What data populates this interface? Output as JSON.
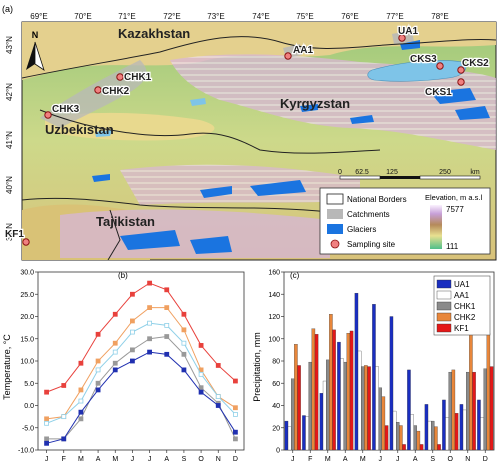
{
  "map": {
    "panel_label": "(a)",
    "top_axis": [
      "69°E",
      "70°E",
      "71°E",
      "72°E",
      "73°E",
      "74°E",
      "75°E",
      "76°E",
      "77°E",
      "78°E"
    ],
    "left_axis": [
      "43°N",
      "42°N",
      "41°N",
      "40°N",
      "39°N"
    ],
    "north_label": "N",
    "countries": [
      "Kazakhstan",
      "Kyrgyzstan",
      "Uzbekistan",
      "Tajikistan"
    ],
    "sites": [
      "UA1",
      "AA1",
      "CKS3",
      "CKS2",
      "CKS1",
      "CHK1",
      "CHK2",
      "CHK3",
      "KF1"
    ],
    "scale": {
      "ticks": [
        "0",
        "62.5",
        "125",
        "250"
      ],
      "unit": "km"
    },
    "legend": {
      "items": [
        "National Borders",
        "Catchments",
        "Glaciers",
        "Sampling site"
      ],
      "elevation_title": "Elevation, m a.s.l",
      "elevation_max": "7577",
      "elevation_min": "111"
    },
    "colors": {
      "glacier": "#1a74e0",
      "catchment": "#b8b8b8",
      "site": "#f08080",
      "lake": "#7ec4e8"
    }
  },
  "chart_data": [
    {
      "type": "line",
      "panel_label": "(b)",
      "title": "",
      "xlabel": "",
      "ylabel": "Temperature, °C",
      "categories": [
        "J",
        "F",
        "M",
        "A",
        "M",
        "J",
        "J",
        "A",
        "S",
        "O",
        "N",
        "D"
      ],
      "ylim": [
        -10,
        30
      ],
      "yticks": [
        "-10.0",
        "-5.0",
        "0.0",
        "5.0",
        "10.0",
        "15.0",
        "20.0",
        "25.0",
        "30.0"
      ],
      "grid": false,
      "series": [
        {
          "color": "#e8413c",
          "values": [
            3.0,
            4.5,
            9.5,
            16.0,
            20.5,
            25.0,
            27.5,
            26.0,
            20.5,
            13.5,
            9.0,
            5.5
          ]
        },
        {
          "color": "#f0a060",
          "values": [
            -3.0,
            -2.5,
            3.5,
            10.0,
            14.0,
            19.0,
            22.0,
            22.0,
            17.0,
            8.0,
            2.0,
            -0.5
          ]
        },
        {
          "color": "#8fd0e8",
          "values": [
            -4.0,
            -2.5,
            1.0,
            8.0,
            12.0,
            16.5,
            18.5,
            18.0,
            14.0,
            7.0,
            2.0,
            -2.0
          ]
        },
        {
          "color": "#999999",
          "values": [
            -7.5,
            -7.5,
            -3.0,
            5.0,
            9.5,
            12.5,
            15.0,
            15.5,
            11.5,
            4.0,
            0.5,
            -7.5
          ]
        },
        {
          "color": "#2030b0",
          "values": [
            -8.5,
            -7.5,
            -1.5,
            3.5,
            8.0,
            10.0,
            12.0,
            11.5,
            8.0,
            3.0,
            0.0,
            -6.0
          ]
        }
      ]
    },
    {
      "type": "bar",
      "panel_label": "(c)",
      "title": "",
      "xlabel": "",
      "ylabel": "Precipitation, mm",
      "categories": [
        "J",
        "F",
        "M",
        "A",
        "M",
        "J",
        "J",
        "A",
        "S",
        "O",
        "N",
        "D"
      ],
      "ylim": [
        0,
        160
      ],
      "yticks": [
        "0",
        "20",
        "40",
        "60",
        "80",
        "100",
        "120",
        "140",
        "160"
      ],
      "grid": false,
      "legend_position": "top-right",
      "series": [
        {
          "name": "UA1",
          "color": "#1a2ec0",
          "values": [
            26,
            31,
            51,
            97,
            141,
            131,
            120,
            72,
            41,
            45,
            41,
            45
          ]
        },
        {
          "name": "AA1",
          "color": "#ffffff",
          "values": [
            21,
            30,
            62,
            82,
            89,
            75,
            35,
            32,
            26,
            29,
            36,
            29
          ]
        },
        {
          "name": "CHK1",
          "color": "#8a8a8a",
          "values": [
            64,
            79,
            81,
            79,
            75,
            56,
            25,
            22,
            26,
            70,
            70,
            73
          ]
        },
        {
          "name": "CHK2",
          "color": "#e8863a",
          "values": [
            95,
            109,
            122,
            105,
            76,
            48,
            22,
            17,
            21,
            72,
            106,
            105
          ]
        },
        {
          "name": "KF1",
          "color": "#e41818",
          "values": [
            76,
            104,
            108,
            107,
            75,
            22,
            5,
            5,
            5,
            33,
            70,
            75
          ]
        }
      ]
    }
  ]
}
